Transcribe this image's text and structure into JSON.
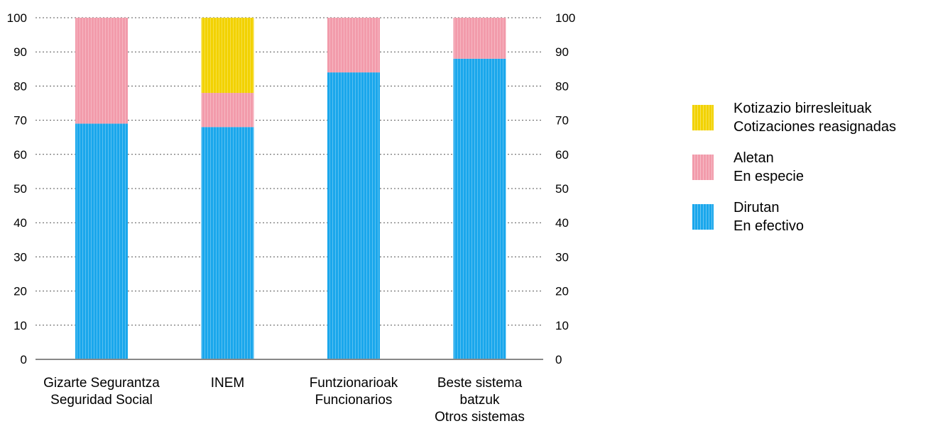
{
  "chart_data": {
    "type": "bar",
    "stacked": true,
    "categories": [
      [
        "Gizarte Segurantza",
        "Seguridad Social"
      ],
      [
        "INEM"
      ],
      [
        "Funtzionarioak",
        "Funcionarios"
      ],
      [
        "Beste sistema",
        "batzuk",
        "Otros sistemas"
      ]
    ],
    "series": [
      {
        "name": [
          "Dirutan",
          "En efectivo"
        ],
        "color": "#1aa7ec",
        "values": [
          69,
          68,
          84,
          88
        ]
      },
      {
        "name": [
          "Aletan",
          "En especie"
        ],
        "color": "#f29bab",
        "values": [
          31,
          10,
          16,
          12
        ]
      },
      {
        "name": [
          "Kotizazio birresleituak",
          "Cotizaciones reasignadas"
        ],
        "color": "#f2d200",
        "values": [
          0,
          22,
          0,
          0
        ]
      }
    ],
    "ylim": [
      0,
      100
    ],
    "yticks": [
      "0",
      "10",
      "20",
      "30",
      "40",
      "50",
      "60",
      "70",
      "80",
      "90",
      "100"
    ],
    "grid": "dotted horizontal",
    "legend": "right"
  }
}
